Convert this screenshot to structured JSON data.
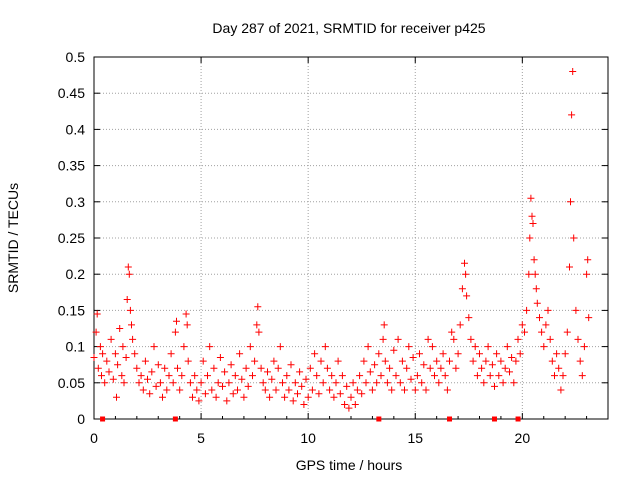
{
  "chart_data": {
    "type": "scatter",
    "title": "Day 287 of 2021, SRMTID for receiver p425",
    "xlabel": "GPS time / hours",
    "ylabel": "SRMTID / TECUs",
    "xlim": [
      0,
      24
    ],
    "ylim": [
      0,
      0.5
    ],
    "x_ticks": [
      0,
      5,
      10,
      15,
      20
    ],
    "y_ticks": [
      0,
      0.05,
      0.1,
      0.15,
      0.2,
      0.25,
      0.3,
      0.35,
      0.4,
      0.45,
      0.5
    ],
    "x_tick_labels": [
      "0",
      "5",
      "10",
      "15",
      "20"
    ],
    "y_tick_labels": [
      "0",
      "0.05",
      "0.1",
      "0.15",
      "0.2",
      "0.25",
      "0.3",
      "0.35",
      "0.4",
      "0.45",
      "0.5"
    ],
    "grid": true,
    "series": [
      {
        "name": "SRMTID",
        "color": "#ff0000",
        "marker": "plus",
        "points": [
          [
            0.0,
            0.085
          ],
          [
            0.1,
            0.12
          ],
          [
            0.15,
            0.145
          ],
          [
            0.2,
            0.07
          ],
          [
            0.3,
            0.1
          ],
          [
            0.35,
            0.06
          ],
          [
            0.4,
            0.09
          ],
          [
            0.5,
            0.05
          ],
          [
            0.6,
            0.08
          ],
          [
            0.7,
            0.065
          ],
          [
            0.8,
            0.11
          ],
          [
            0.9,
            0.055
          ],
          [
            1.0,
            0.09
          ],
          [
            1.05,
            0.03
          ],
          [
            1.1,
            0.075
          ],
          [
            1.2,
            0.125
          ],
          [
            1.3,
            0.06
          ],
          [
            1.35,
            0.1
          ],
          [
            1.4,
            0.05
          ],
          [
            1.5,
            0.085
          ],
          [
            1.55,
            0.165
          ],
          [
            1.6,
            0.21
          ],
          [
            1.65,
            0.2
          ],
          [
            1.7,
            0.15
          ],
          [
            1.75,
            0.13
          ],
          [
            1.8,
            0.11
          ],
          [
            1.9,
            0.09
          ],
          [
            2.0,
            0.07
          ],
          [
            2.1,
            0.05
          ],
          [
            2.2,
            0.06
          ],
          [
            2.3,
            0.04
          ],
          [
            2.4,
            0.08
          ],
          [
            2.5,
            0.055
          ],
          [
            2.6,
            0.035
          ],
          [
            2.7,
            0.065
          ],
          [
            2.8,
            0.1
          ],
          [
            2.9,
            0.045
          ],
          [
            3.0,
            0.075
          ],
          [
            3.1,
            0.05
          ],
          [
            3.2,
            0.03
          ],
          [
            3.3,
            0.07
          ],
          [
            3.4,
            0.04
          ],
          [
            3.5,
            0.06
          ],
          [
            3.6,
            0.09
          ],
          [
            3.7,
            0.05
          ],
          [
            3.8,
            0.12
          ],
          [
            3.85,
            0.135
          ],
          [
            3.9,
            0.07
          ],
          [
            4.0,
            0.04
          ],
          [
            4.1,
            0.06
          ],
          [
            4.2,
            0.1
          ],
          [
            4.3,
            0.145
          ],
          [
            4.35,
            0.13
          ],
          [
            4.4,
            0.08
          ],
          [
            4.5,
            0.05
          ],
          [
            4.6,
            0.03
          ],
          [
            4.7,
            0.06
          ],
          [
            4.8,
            0.04
          ],
          [
            4.9,
            0.025
          ],
          [
            5.0,
            0.05
          ],
          [
            5.1,
            0.08
          ],
          [
            5.2,
            0.035
          ],
          [
            5.3,
            0.06
          ],
          [
            5.4,
            0.1
          ],
          [
            5.5,
            0.04
          ],
          [
            5.6,
            0.07
          ],
          [
            5.7,
            0.03
          ],
          [
            5.8,
            0.05
          ],
          [
            5.9,
            0.085
          ],
          [
            6.0,
            0.045
          ],
          [
            6.1,
            0.065
          ],
          [
            6.2,
            0.025
          ],
          [
            6.3,
            0.05
          ],
          [
            6.4,
            0.075
          ],
          [
            6.5,
            0.035
          ],
          [
            6.6,
            0.06
          ],
          [
            6.7,
            0.04
          ],
          [
            6.8,
            0.09
          ],
          [
            6.9,
            0.055
          ],
          [
            7.0,
            0.03
          ],
          [
            7.1,
            0.07
          ],
          [
            7.2,
            0.045
          ],
          [
            7.3,
            0.1
          ],
          [
            7.4,
            0.06
          ],
          [
            7.5,
            0.08
          ],
          [
            7.6,
            0.13
          ],
          [
            7.65,
            0.155
          ],
          [
            7.7,
            0.12
          ],
          [
            7.8,
            0.07
          ],
          [
            7.9,
            0.05
          ],
          [
            8.0,
            0.04
          ],
          [
            8.1,
            0.065
          ],
          [
            8.2,
            0.03
          ],
          [
            8.3,
            0.055
          ],
          [
            8.4,
            0.08
          ],
          [
            8.5,
            0.04
          ],
          [
            8.6,
            0.07
          ],
          [
            8.7,
            0.1
          ],
          [
            8.8,
            0.05
          ],
          [
            8.9,
            0.03
          ],
          [
            9.0,
            0.06
          ],
          [
            9.1,
            0.04
          ],
          [
            9.2,
            0.075
          ],
          [
            9.3,
            0.025
          ],
          [
            9.4,
            0.05
          ],
          [
            9.5,
            0.035
          ],
          [
            9.6,
            0.065
          ],
          [
            9.7,
            0.045
          ],
          [
            9.8,
            0.02
          ],
          [
            9.9,
            0.055
          ],
          [
            10.0,
            0.03
          ],
          [
            10.1,
            0.07
          ],
          [
            10.2,
            0.04
          ],
          [
            10.3,
            0.09
          ],
          [
            10.4,
            0.06
          ],
          [
            10.5,
            0.035
          ],
          [
            10.6,
            0.08
          ],
          [
            10.7,
            0.05
          ],
          [
            10.8,
            0.1
          ],
          [
            10.9,
            0.07
          ],
          [
            11.0,
            0.04
          ],
          [
            11.1,
            0.06
          ],
          [
            11.2,
            0.03
          ],
          [
            11.3,
            0.05
          ],
          [
            11.4,
            0.08
          ],
          [
            11.5,
            0.035
          ],
          [
            11.6,
            0.06
          ],
          [
            11.7,
            0.02
          ],
          [
            11.8,
            0.045
          ],
          [
            11.9,
            0.015
          ],
          [
            12.0,
            0.03
          ],
          [
            12.1,
            0.05
          ],
          [
            12.2,
            0.02
          ],
          [
            12.3,
            0.04
          ],
          [
            12.4,
            0.06
          ],
          [
            12.5,
            0.035
          ],
          [
            12.6,
            0.08
          ],
          [
            12.7,
            0.05
          ],
          [
            12.8,
            0.1
          ],
          [
            12.9,
            0.065
          ],
          [
            13.0,
            0.04
          ],
          [
            13.1,
            0.075
          ],
          [
            13.2,
            0.05
          ],
          [
            13.3,
            0.09
          ],
          [
            13.4,
            0.06
          ],
          [
            13.5,
            0.11
          ],
          [
            13.55,
            0.13
          ],
          [
            13.6,
            0.08
          ],
          [
            13.7,
            0.05
          ],
          [
            13.8,
            0.07
          ],
          [
            13.9,
            0.04
          ],
          [
            14.0,
            0.095
          ],
          [
            14.1,
            0.06
          ],
          [
            14.2,
            0.11
          ],
          [
            14.3,
            0.05
          ],
          [
            14.4,
            0.08
          ],
          [
            14.5,
            0.04
          ],
          [
            14.6,
            0.07
          ],
          [
            14.7,
            0.1
          ],
          [
            14.8,
            0.055
          ],
          [
            14.9,
            0.085
          ],
          [
            15.0,
            0.04
          ],
          [
            15.1,
            0.06
          ],
          [
            15.2,
            0.09
          ],
          [
            15.3,
            0.05
          ],
          [
            15.4,
            0.075
          ],
          [
            15.5,
            0.04
          ],
          [
            15.6,
            0.11
          ],
          [
            15.7,
            0.07
          ],
          [
            15.8,
            0.1
          ],
          [
            15.9,
            0.06
          ],
          [
            16.0,
            0.08
          ],
          [
            16.1,
            0.05
          ],
          [
            16.2,
            0.07
          ],
          [
            16.3,
            0.09
          ],
          [
            16.4,
            0.06
          ],
          [
            16.5,
            0.04
          ],
          [
            16.6,
            0.08
          ],
          [
            16.7,
            0.12
          ],
          [
            16.8,
            0.11
          ],
          [
            16.9,
            0.07
          ],
          [
            17.0,
            0.09
          ],
          [
            17.1,
            0.13
          ],
          [
            17.2,
            0.18
          ],
          [
            17.3,
            0.215
          ],
          [
            17.35,
            0.2
          ],
          [
            17.4,
            0.17
          ],
          [
            17.5,
            0.14
          ],
          [
            17.6,
            0.11
          ],
          [
            17.7,
            0.08
          ],
          [
            17.8,
            0.1
          ],
          [
            17.9,
            0.06
          ],
          [
            18.0,
            0.09
          ],
          [
            18.1,
            0.07
          ],
          [
            18.2,
            0.05
          ],
          [
            18.3,
            0.08
          ],
          [
            18.4,
            0.1
          ],
          [
            18.5,
            0.06
          ],
          [
            18.6,
            0.075
          ],
          [
            18.7,
            0.045
          ],
          [
            18.8,
            0.09
          ],
          [
            18.9,
            0.06
          ],
          [
            19.0,
            0.08
          ],
          [
            19.1,
            0.05
          ],
          [
            19.2,
            0.07
          ],
          [
            19.3,
            0.1
          ],
          [
            19.4,
            0.065
          ],
          [
            19.5,
            0.085
          ],
          [
            19.6,
            0.05
          ],
          [
            19.7,
            0.08
          ],
          [
            19.8,
            0.11
          ],
          [
            19.9,
            0.09
          ],
          [
            20.0,
            0.13
          ],
          [
            20.1,
            0.12
          ],
          [
            20.2,
            0.15
          ],
          [
            20.3,
            0.2
          ],
          [
            20.35,
            0.25
          ],
          [
            20.4,
            0.305
          ],
          [
            20.45,
            0.28
          ],
          [
            20.5,
            0.27
          ],
          [
            20.55,
            0.22
          ],
          [
            20.6,
            0.2
          ],
          [
            20.65,
            0.18
          ],
          [
            20.7,
            0.16
          ],
          [
            20.8,
            0.14
          ],
          [
            20.9,
            0.12
          ],
          [
            21.0,
            0.1
          ],
          [
            21.1,
            0.13
          ],
          [
            21.2,
            0.15
          ],
          [
            21.3,
            0.11
          ],
          [
            21.4,
            0.08
          ],
          [
            21.5,
            0.06
          ],
          [
            21.6,
            0.09
          ],
          [
            21.7,
            0.07
          ],
          [
            21.8,
            0.04
          ],
          [
            21.9,
            0.06
          ],
          [
            22.0,
            0.09
          ],
          [
            22.1,
            0.12
          ],
          [
            22.2,
            0.21
          ],
          [
            22.25,
            0.3
          ],
          [
            22.3,
            0.42
          ],
          [
            22.35,
            0.48
          ],
          [
            22.4,
            0.25
          ],
          [
            22.5,
            0.15
          ],
          [
            22.6,
            0.11
          ],
          [
            22.7,
            0.08
          ],
          [
            22.8,
            0.06
          ],
          [
            22.9,
            0.1
          ],
          [
            23.0,
            0.2
          ],
          [
            23.05,
            0.22
          ],
          [
            23.1,
            0.14
          ]
        ]
      }
    ],
    "gap_markers_x": [
      0.4,
      3.8,
      13.3,
      16.6,
      18.7,
      19.8
    ]
  }
}
